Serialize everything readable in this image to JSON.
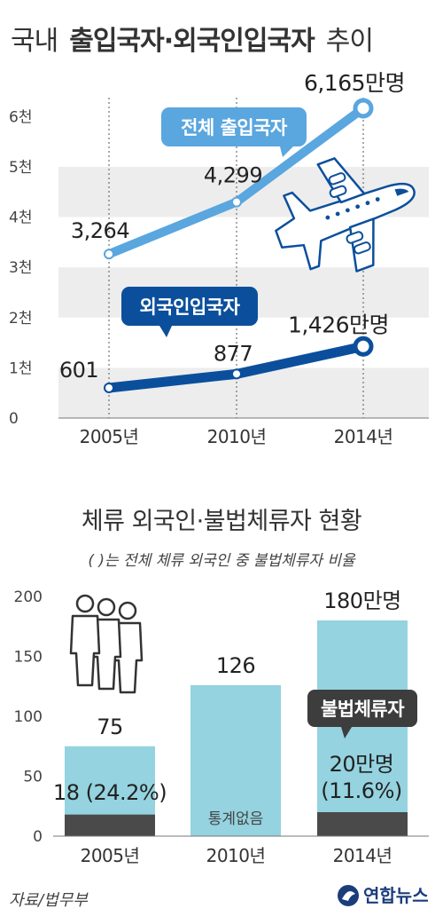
{
  "title": {
    "prefix": "국내",
    "bold": "출입국자·외국인입국자",
    "suffix": "추이"
  },
  "chart_data": [
    {
      "type": "line",
      "ylabel": "",
      "ytick_labels": [
        "0",
        "1천",
        "2천",
        "3천",
        "4천",
        "5천",
        "6천"
      ],
      "ylim": [
        0,
        6500
      ],
      "categories": [
        "2005년",
        "2010년",
        "2014년"
      ],
      "series": [
        {
          "name": "전체 출입국자",
          "values": [
            3264,
            4299,
            6165
          ],
          "labels": [
            "3,264",
            "4,299",
            "6,165만명"
          ],
          "color": "#5aa6df"
        },
        {
          "name": "외국인입국자",
          "values": [
            601,
            877,
            1426
          ],
          "labels": [
            "601",
            "877",
            "1,426만명"
          ],
          "color": "#0b4f9c"
        }
      ],
      "grid": "alternating-bands"
    },
    {
      "type": "bar",
      "title": "체류 외국인·불법체류자 현황",
      "subtitle": "(  )는 전체 체류 외국인 중 불법체류자 비율",
      "categories": [
        "2005년",
        "2010년",
        "2014년"
      ],
      "ytick_labels": [
        "0",
        "50",
        "100",
        "150",
        "200"
      ],
      "ylim": [
        0,
        200
      ],
      "series": [
        {
          "name": "체류 외국인",
          "values": [
            75,
            126,
            180
          ],
          "labels": [
            "75",
            "126",
            "180만명"
          ],
          "color": "#94d3df"
        },
        {
          "name": "불법체류자",
          "values": [
            18,
            null,
            20
          ],
          "labels": [
            "18 (24.2%)",
            "통계없음",
            "20만명"
          ],
          "extra_label": "(11.6%)",
          "color": "#4a4a4a"
        }
      ]
    }
  ],
  "footer": {
    "source": "자료/법무부",
    "brand": "연합뉴스"
  }
}
